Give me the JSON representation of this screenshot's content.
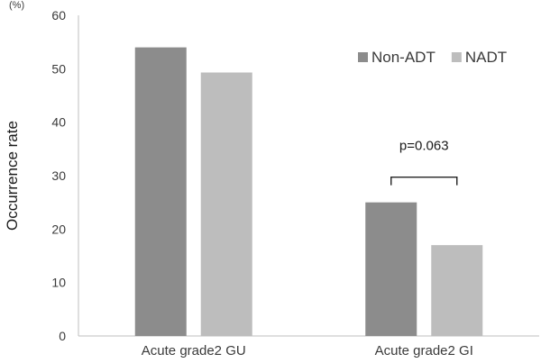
{
  "chart_data": {
    "type": "bar",
    "categories": [
      "Acute grade2 GU",
      "Acute grade2 GI"
    ],
    "series": [
      {
        "name": "Non-ADT",
        "values": [
          54,
          25
        ],
        "color": "#8c8c8c"
      },
      {
        "name": "NADT",
        "values": [
          49.3,
          17
        ],
        "color": "#bdbdbd"
      }
    ],
    "ylabel": "Occurrence rate",
    "yunit": "(%)",
    "ylim": [
      0,
      60
    ],
    "yticks": [
      0,
      10,
      20,
      30,
      40,
      50,
      60
    ],
    "grid": false,
    "legend_position": "top-right",
    "annotations": [
      {
        "text": "p=0.063",
        "category_index": 1
      }
    ]
  }
}
